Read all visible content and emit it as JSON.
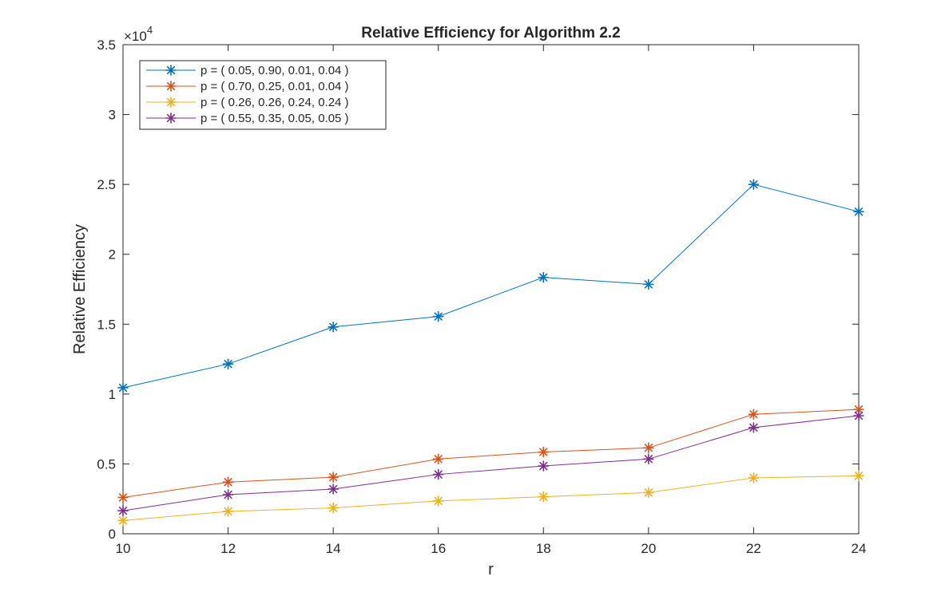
{
  "chart_data": {
    "type": "line",
    "title": "Relative Efficiency for Algorithm 2.2",
    "xlabel": "r",
    "ylabel": "Relative Efficiency",
    "xlim": [
      10,
      24
    ],
    "ylim": [
      0,
      35000
    ],
    "x_ticks": [
      10,
      12,
      14,
      16,
      18,
      20,
      22,
      24
    ],
    "y_ticks": [
      0,
      5000,
      10000,
      15000,
      20000,
      25000,
      30000,
      35000
    ],
    "y_tick_labels": [
      "0",
      "0.5",
      "1",
      "1.5",
      "2",
      "2.5",
      "3",
      "3.5"
    ],
    "y_scale_label": "×10",
    "y_scale_exponent": "4",
    "grid": false,
    "legend_position": "top-left",
    "x": [
      10,
      12,
      14,
      16,
      18,
      20,
      22,
      24
    ],
    "series": [
      {
        "name": "p = ( 0.05, 0.90, 0.01, 0.04 )",
        "color": "#0072BD",
        "marker": "asterisk",
        "values": [
          10450,
          12150,
          14800,
          15550,
          18350,
          17850,
          25000,
          23050
        ]
      },
      {
        "name": "p = ( 0.70, 0.25, 0.01, 0.04 )",
        "color": "#D95319",
        "marker": "asterisk",
        "values": [
          2600,
          3700,
          4050,
          5350,
          5850,
          6150,
          8550,
          8900
        ]
      },
      {
        "name": "p = ( 0.26, 0.26, 0.24, 0.24 )",
        "color": "#EDB120",
        "marker": "asterisk",
        "values": [
          950,
          1600,
          1850,
          2350,
          2650,
          2950,
          4000,
          4150
        ]
      },
      {
        "name": "p = ( 0.55, 0.35, 0.05, 0.05 )",
        "color": "#7E2F8E",
        "marker": "asterisk",
        "values": [
          1650,
          2800,
          3200,
          4250,
          4850,
          5350,
          7600,
          8450
        ]
      }
    ]
  }
}
